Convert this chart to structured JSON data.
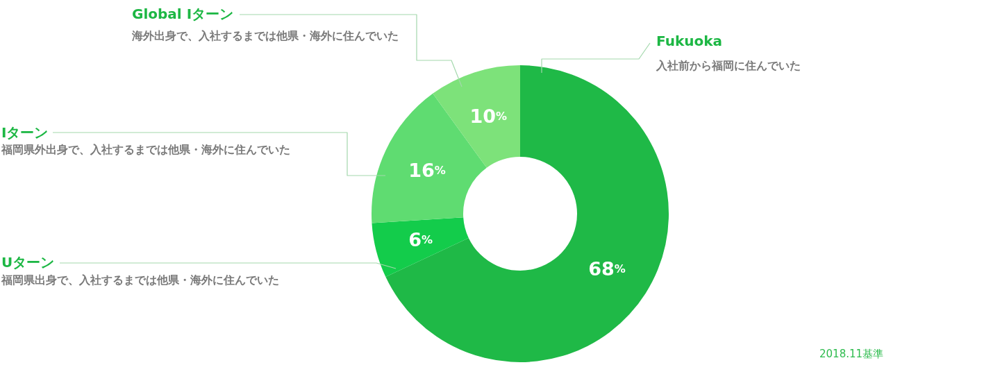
{
  "chart_data": {
    "type": "donut",
    "categories": [
      "Fukuoka",
      "Uターン",
      "Iターン",
      "Global Iターン"
    ],
    "values": [
      68,
      6,
      16,
      10
    ],
    "colors": [
      "#1fb947",
      "#13cc4b",
      "#5fdc71",
      "#7de27a"
    ],
    "value_labels": [
      "68%",
      "6%",
      "16%",
      "10%"
    ],
    "annotations": [
      {
        "text": "入社前から福岡に住んでいた",
        "x": "Fukuoka"
      },
      {
        "text": "福岡県出身で、入社するまでは他県・海外に住んでいた",
        "x": "Uターン"
      },
      {
        "text": "福岡県外出身で、入社するまでは他県・海外に住んでいた",
        "x": "Iターン"
      },
      {
        "text": "海外出身で、入社するまでは他県・海外に住んでいた",
        "x": "Global Iターン"
      },
      "2018.11基準"
    ]
  }
}
